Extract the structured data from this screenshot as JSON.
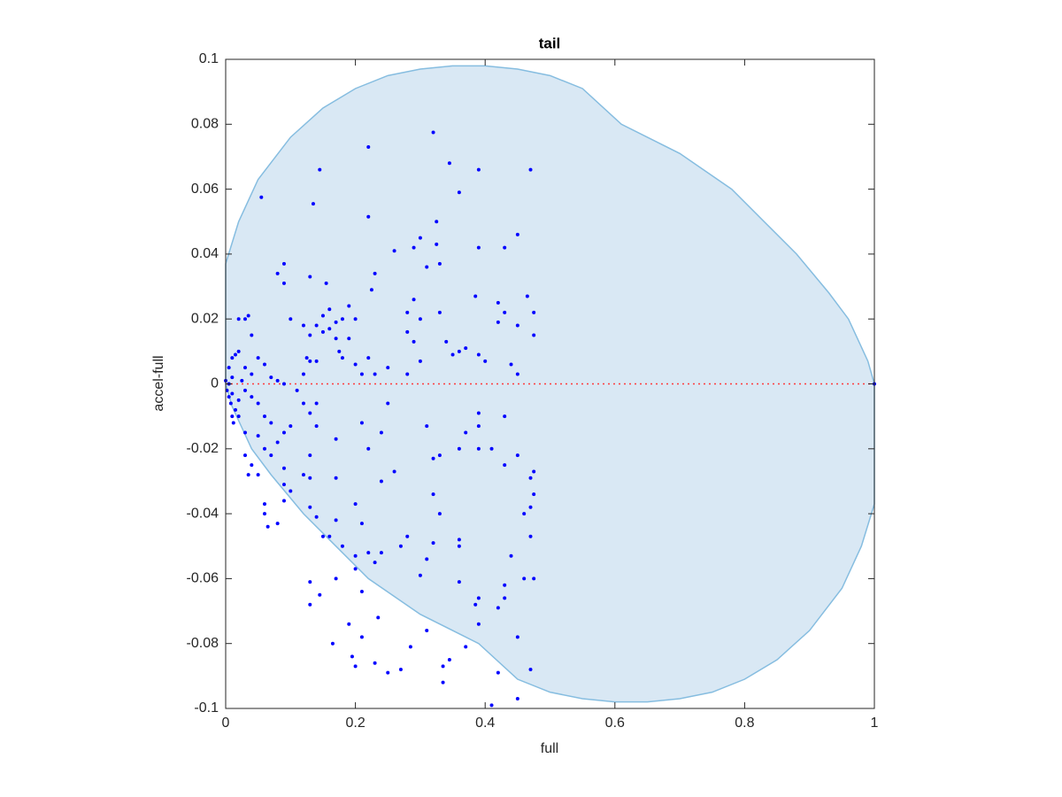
{
  "chart_data": {
    "type": "scatter",
    "title": "tail",
    "x_label": "full",
    "y_label": "accel-full",
    "xlim": [
      0,
      1
    ],
    "ylim": [
      -0.1,
      0.1
    ],
    "xticks": [
      0,
      0.2,
      0.4,
      0.6,
      0.8,
      1
    ],
    "yticks": [
      -0.1,
      -0.08,
      -0.06,
      -0.04,
      -0.02,
      0,
      0.02,
      0.04,
      0.06,
      0.08,
      0.1
    ],
    "region": {
      "color": "#d9e8f4",
      "edge_color": "#86bde0",
      "x": [
        0,
        0.02,
        0.05,
        0.1,
        0.15,
        0.2,
        0.25,
        0.3,
        0.35,
        0.4,
        0.45,
        0.5,
        0.55,
        0.61,
        0.7,
        0.78,
        0.84,
        0.88,
        0.93,
        0.96,
        0.99,
        1,
        1,
        0.98,
        0.95,
        0.9,
        0.85,
        0.8,
        0.75,
        0.7,
        0.65,
        0.6,
        0.55,
        0.5,
        0.45,
        0.39,
        0.3,
        0.22,
        0.16,
        0.12,
        0.07,
        0.04,
        0.01,
        0
      ],
      "y": [
        0.037,
        0.05,
        0.063,
        0.076,
        0.085,
        0.091,
        0.095,
        0.097,
        0.098,
        0.098,
        0.097,
        0.095,
        0.091,
        0.08,
        0.071,
        0.06,
        0.048,
        0.04,
        0.028,
        0.02,
        0.007,
        0,
        -0.037,
        -0.05,
        -0.063,
        -0.076,
        -0.085,
        -0.091,
        -0.095,
        -0.097,
        -0.098,
        -0.098,
        -0.097,
        -0.095,
        -0.091,
        -0.08,
        -0.071,
        -0.06,
        -0.048,
        -0.04,
        -0.028,
        -0.02,
        -0.007,
        0
      ]
    },
    "reference_line": {
      "y": 0,
      "color": "#ff3b3b"
    },
    "series": [
      {
        "color": "#0000ff",
        "x": [
          0.22,
          0.32,
          0.145,
          0.345,
          0.39,
          0.47,
          0.055,
          0.135,
          0.22,
          0.36,
          0.325,
          0.3,
          0.29,
          0.325,
          0.31,
          0.33,
          0.45,
          0.43,
          0.39,
          0.26,
          0.09,
          0.08,
          0.09,
          0.13,
          0.155,
          0.23,
          0.225,
          0.29,
          0.385,
          0.42,
          0.465,
          0.43,
          0.45,
          0.475,
          0.475,
          0.28,
          0.3,
          0.1,
          0.12,
          0.14,
          0.13,
          0.15,
          0.16,
          0.15,
          0.16,
          0.17,
          0.18,
          0.19,
          0.2,
          0.19,
          0.17,
          0.175,
          0.18,
          0.2,
          0.21,
          0.22,
          0.25,
          0.28,
          0.3,
          0.28,
          0.29,
          0.34,
          0.35,
          0.37,
          0.36,
          0.39,
          0.4,
          0.42,
          0.44,
          0.45,
          0.14,
          0.125,
          0.13,
          0.12,
          0.11,
          0.33,
          0.23,
          0.01,
          0.005,
          0.01,
          0.015,
          0.02,
          0.02,
          0.03,
          0.035,
          0.04,
          0.05,
          0.06,
          0.07,
          0.08,
          0.09,
          0.03,
          0.04,
          0.025,
          0.005,
          0,
          0.002,
          0.005,
          0.008,
          0.01,
          0.012,
          0.015,
          0.02,
          0.01,
          0.03,
          0.04,
          0.05,
          0.06,
          0.07,
          0.05,
          0.06,
          0.07,
          0.08,
          0.02,
          0.03,
          0.03,
          0.035,
          0.04,
          0.05,
          0.06,
          0.06,
          0.065,
          1,
          0.42,
          0.41,
          0.45,
          0.47,
          0.45,
          0.335,
          0.335,
          0.345,
          0.25,
          0.27,
          0.23,
          0.2,
          0.195,
          0.165,
          0.19,
          0.21,
          0.13,
          0.145,
          0.13,
          0.17,
          0.235,
          0.285,
          0.31,
          0.37,
          0.39,
          0.385,
          0.39,
          0.42,
          0.43,
          0.43,
          0.46,
          0.475,
          0.44,
          0.47,
          0.46,
          0.47,
          0.47,
          0.475,
          0.475,
          0.45,
          0.43,
          0.41,
          0.39,
          0.39,
          0.39,
          0.43,
          0.37,
          0.36,
          0.33,
          0.32,
          0.31,
          0.32,
          0.33,
          0.36,
          0.36,
          0.36,
          0.32,
          0.31,
          0.3,
          0.28,
          0.27,
          0.26,
          0.25,
          0.24,
          0.24,
          0.22,
          0.21,
          0.2,
          0.21,
          0.2,
          0.2,
          0.21,
          0.22,
          0.23,
          0.24,
          0.17,
          0.17,
          0.17,
          0.18,
          0.16,
          0.15,
          0.14,
          0.13,
          0.13,
          0.12,
          0.13,
          0.14,
          0.13,
          0.12,
          0.14,
          0.1,
          0.09,
          0.09,
          0.09,
          0.09,
          0.08,
          0.1
        ],
        "values": [
          0.073,
          0.0775,
          0.066,
          0.068,
          0.066,
          0.066,
          0.0575,
          0.0555,
          0.0515,
          0.059,
          0.05,
          0.045,
          0.042,
          0.043,
          0.036,
          0.037,
          0.046,
          0.042,
          0.042,
          0.041,
          0.037,
          0.034,
          0.031,
          0.033,
          0.031,
          0.034,
          0.029,
          0.026,
          0.027,
          0.025,
          0.027,
          0.022,
          0.018,
          0.022,
          0.015,
          0.022,
          0.02,
          0.02,
          0.018,
          0.018,
          0.015,
          0.016,
          0.017,
          0.021,
          0.023,
          0.019,
          0.02,
          0.024,
          0.02,
          0.014,
          0.014,
          0.01,
          0.008,
          0.006,
          0.003,
          0.008,
          0.005,
          0.003,
          0.007,
          0.016,
          0.013,
          0.013,
          0.009,
          0.011,
          0.01,
          0.009,
          0.007,
          0.019,
          0.006,
          0.003,
          0.007,
          0.008,
          0.007,
          0.003,
          -0.002,
          0.022,
          0.003,
          0.002,
          0.005,
          0.008,
          0.009,
          0.01,
          0.02,
          0.02,
          0.021,
          0.015,
          0.008,
          0.006,
          0.002,
          0.001,
          0,
          0.005,
          0.003,
          0.001,
          0,
          0.001,
          -0.002,
          -0.004,
          -0.006,
          -0.01,
          -0.012,
          -0.008,
          -0.005,
          -0.003,
          -0.002,
          -0.004,
          -0.006,
          -0.01,
          -0.012,
          -0.016,
          -0.02,
          -0.022,
          -0.018,
          -0.01,
          -0.015,
          -0.022,
          -0.028,
          -0.025,
          -0.028,
          -0.037,
          -0.04,
          -0.044,
          0,
          -0.089,
          -0.099,
          -0.097,
          -0.088,
          -0.078,
          -0.092,
          -0.087,
          -0.085,
          -0.089,
          -0.088,
          -0.086,
          -0.087,
          -0.084,
          -0.08,
          -0.074,
          -0.078,
          -0.068,
          -0.065,
          -0.061,
          -0.06,
          -0.072,
          -0.081,
          -0.076,
          -0.081,
          -0.074,
          -0.068,
          -0.066,
          -0.069,
          -0.062,
          -0.066,
          -0.06,
          -0.06,
          -0.053,
          -0.047,
          -0.04,
          -0.038,
          -0.029,
          -0.027,
          -0.034,
          -0.022,
          -0.025,
          -0.02,
          -0.02,
          -0.013,
          -0.009,
          -0.01,
          -0.015,
          -0.02,
          -0.022,
          -0.023,
          -0.013,
          -0.034,
          -0.04,
          -0.048,
          -0.05,
          -0.061,
          -0.049,
          -0.054,
          -0.059,
          -0.047,
          -0.05,
          -0.027,
          -0.006,
          -0.015,
          -0.03,
          -0.02,
          -0.012,
          -0.037,
          -0.043,
          -0.053,
          -0.057,
          -0.064,
          -0.052,
          -0.055,
          -0.052,
          -0.017,
          -0.029,
          -0.042,
          -0.05,
          -0.047,
          -0.047,
          -0.041,
          -0.038,
          -0.029,
          -0.028,
          -0.022,
          -0.013,
          -0.009,
          -0.006,
          -0.006,
          -0.013,
          -0.015,
          -0.026,
          -0.031,
          -0.036,
          -0.043,
          -0.033
        ]
      }
    ]
  }
}
